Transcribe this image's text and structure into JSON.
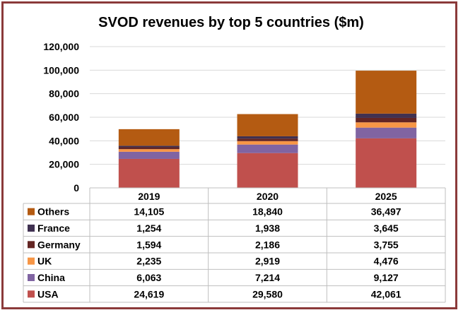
{
  "chart_data": {
    "type": "stacked-bar",
    "title": "SVOD revenues by top 5 countries ($m)",
    "categories": [
      "2019",
      "2020",
      "2025"
    ],
    "y_ticks": [
      "0",
      "20,000",
      "40,000",
      "60,000",
      "80,000",
      "100,000",
      "120,000"
    ],
    "ylim": [
      0,
      120000
    ],
    "series": [
      {
        "name": "USA",
        "color": "#c0504d",
        "values": [
          24619,
          29580,
          42061
        ],
        "labels": [
          "24,619",
          "29,580",
          "42,061"
        ]
      },
      {
        "name": "China",
        "color": "#8064a2",
        "values": [
          6063,
          7214,
          9127
        ],
        "labels": [
          "6,063",
          "7,214",
          "9,127"
        ]
      },
      {
        "name": "UK",
        "color": "#f79646",
        "values": [
          2235,
          2919,
          4476
        ],
        "labels": [
          "2,235",
          "2,919",
          "4,476"
        ]
      },
      {
        "name": "Germany",
        "color": "#632523",
        "values": [
          1594,
          2186,
          3755
        ],
        "labels": [
          "1,594",
          "2,186",
          "3,755"
        ]
      },
      {
        "name": "France",
        "color": "#403151",
        "values": [
          1254,
          1938,
          3645
        ],
        "labels": [
          "1,254",
          "1,938",
          "3,645"
        ]
      },
      {
        "name": "Others",
        "color": "#b45b12",
        "values": [
          14105,
          18840,
          36497
        ],
        "labels": [
          "14,105",
          "18,840",
          "36,497"
        ]
      }
    ]
  }
}
